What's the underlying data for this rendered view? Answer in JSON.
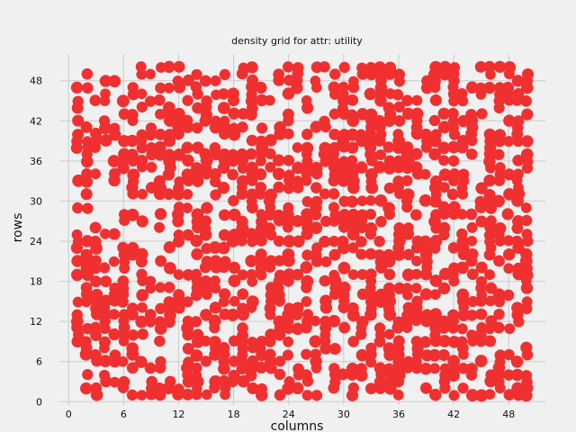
{
  "chart_data": {
    "type": "scatter",
    "title": "density grid for attr: utility",
    "xlabel": "columns",
    "ylabel": "rows",
    "xlim": [
      -1,
      52
    ],
    "ylim": [
      -0.5,
      52
    ],
    "xticks": [
      0,
      6,
      12,
      18,
      24,
      30,
      36,
      42,
      48
    ],
    "yticks": [
      0,
      6,
      12,
      18,
      24,
      30,
      36,
      42,
      48
    ],
    "grid": true,
    "marker_color": "#f03030",
    "background": "#f0f0f0",
    "grid_size": [
      50,
      50
    ],
    "density": 0.48,
    "seed": 20240611
  }
}
